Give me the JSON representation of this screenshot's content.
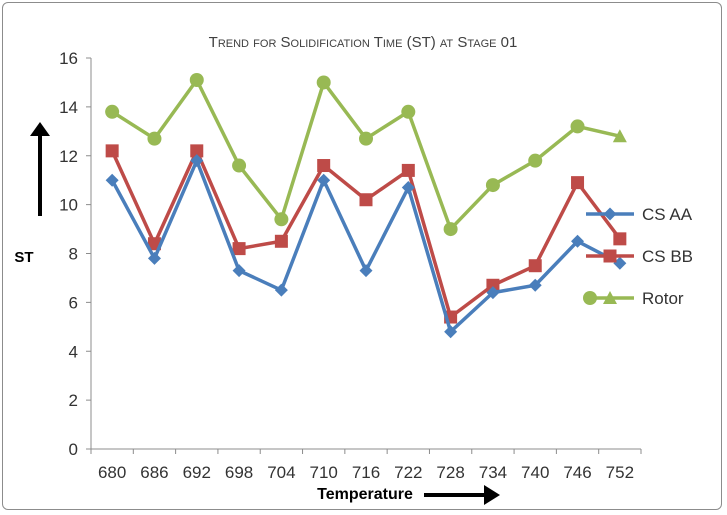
{
  "chart_data": {
    "type": "line",
    "title": "Trend for Solidification Time (ST) at Stage 01",
    "xlabel": "Temperature",
    "ylabel": "ST",
    "categories": [
      "680",
      "686",
      "692",
      "698",
      "704",
      "710",
      "716",
      "722",
      "728",
      "734",
      "740",
      "746",
      "752"
    ],
    "ylim": [
      0,
      16
    ],
    "yticks": [
      "0",
      "2",
      "4",
      "6",
      "8",
      "10",
      "12",
      "14",
      "16"
    ],
    "grid": false,
    "legend_position": "right",
    "series": [
      {
        "name": "CS AA",
        "color": "#4a7ebb",
        "marker": "diamond",
        "values": [
          11.0,
          7.8,
          11.8,
          7.3,
          6.5,
          11.0,
          7.3,
          10.7,
          4.8,
          6.4,
          6.7,
          8.5,
          7.6
        ]
      },
      {
        "name": "CS BB",
        "color": "#be4b48",
        "marker": "square",
        "values": [
          12.2,
          8.4,
          12.2,
          8.2,
          8.5,
          11.6,
          10.2,
          11.4,
          5.4,
          6.7,
          7.5,
          10.9,
          8.6
        ]
      },
      {
        "name": "Rotor",
        "color": "#98b954",
        "marker": "circle",
        "values": [
          13.8,
          12.7,
          15.1,
          11.6,
          9.4,
          15.0,
          12.7,
          13.8,
          9.0,
          10.8,
          11.8,
          13.2,
          12.8
        ]
      }
    ]
  }
}
